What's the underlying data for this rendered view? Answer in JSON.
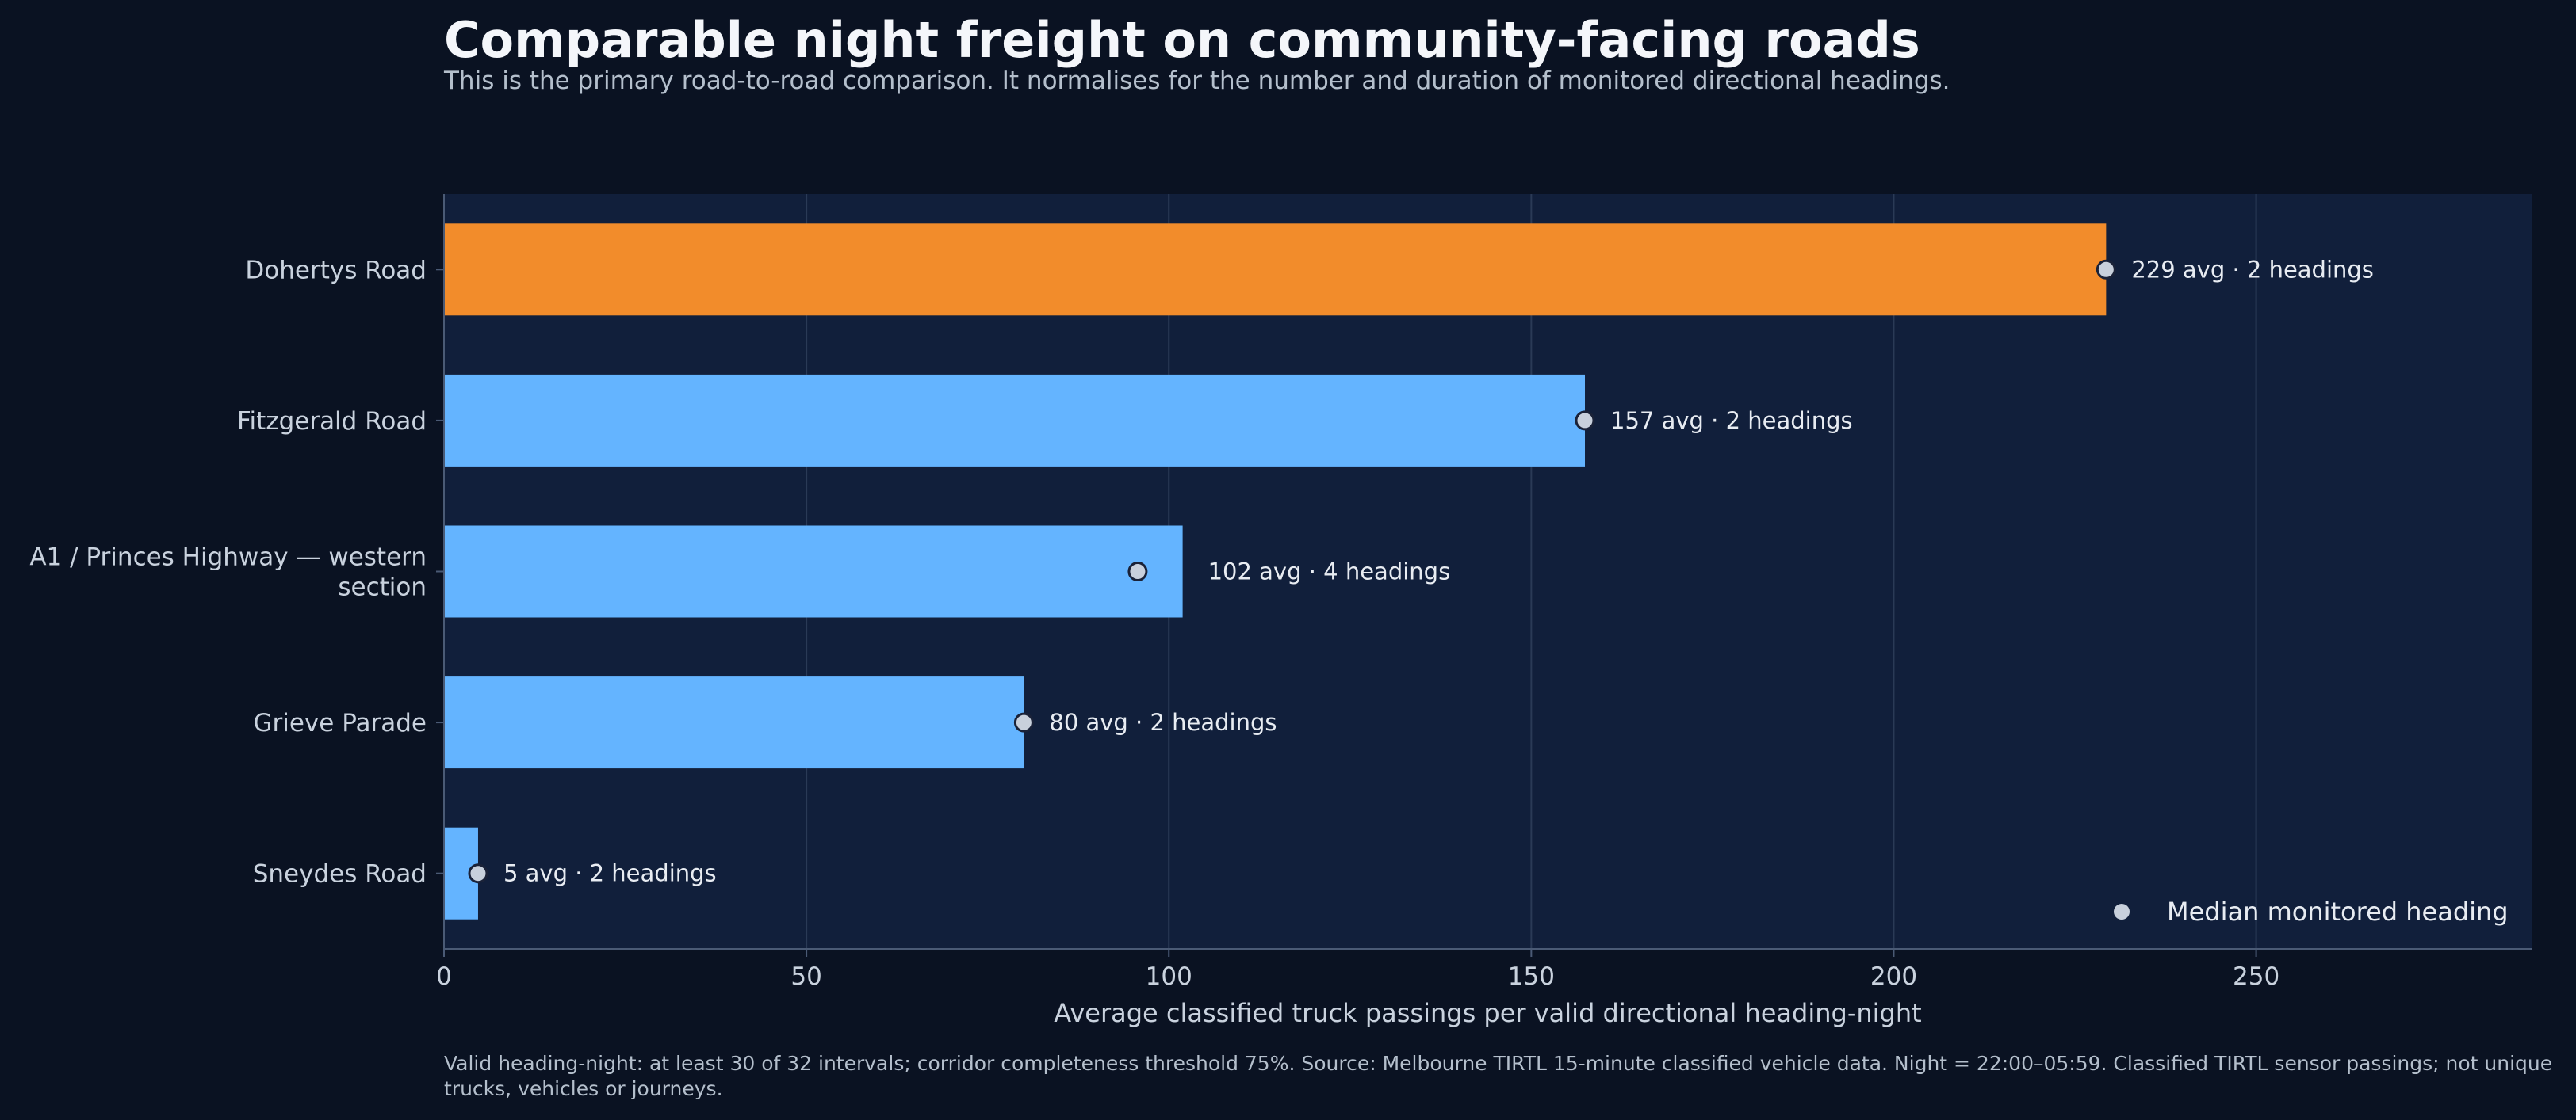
{
  "chart_data": {
    "type": "bar",
    "orientation": "horizontal",
    "title": "Comparable night freight on community-facing roads",
    "subtitle": "This is the primary road-to-road comparison. It normalises for the number and duration of monitored directional headings.",
    "xlabel": "Average classified truck passings per valid directional heading-night",
    "ylabel": "",
    "xlim": [
      0,
      288
    ],
    "xticks": [
      0,
      50,
      100,
      150,
      200,
      250
    ],
    "grid": "vertical",
    "categories": [
      [
        "Dohertys Road"
      ],
      [
        "Fitzgerald Road"
      ],
      [
        "A1 / Princes Highway — western",
        "section"
      ],
      [
        "Grieve Parade"
      ],
      [
        "Sneydes Road"
      ]
    ],
    "values": [
      229.3,
      157.4,
      101.9,
      80.0,
      4.7
    ],
    "medians": [
      229.3,
      157.4,
      95.7,
      80.0,
      4.7
    ],
    "bar_labels": [
      "229 avg · 2 headings",
      "157 avg · 2 headings",
      "102 avg · 4 headings",
      "80 avg · 2 headings",
      "5 avg · 2 headings"
    ],
    "colors": [
      "#f28c2b",
      "#64b4ff",
      "#64b4ff",
      "#64b4ff",
      "#64b4ff"
    ],
    "legend": {
      "label": "Median monitored heading",
      "placement": "lower-right"
    },
    "footnote": "Valid heading-night: at least 30 of 32 intervals; corridor completeness threshold 75%. Source: Melbourne TIRTL 15-minute classified vehicle data. Night = 22:00–05:59. Classified TIRTL sensor passings; not unique trucks, vehicles or journeys."
  },
  "colors": {
    "plot_bg": "#111f3b",
    "grid": "#2a3a56",
    "axis": "#4a5a75",
    "tick_text": "#c9d2de",
    "marker_fill": "#c8d0dc",
    "marker_stroke": "#1a2238",
    "label_text": "#e8ecf2"
  }
}
